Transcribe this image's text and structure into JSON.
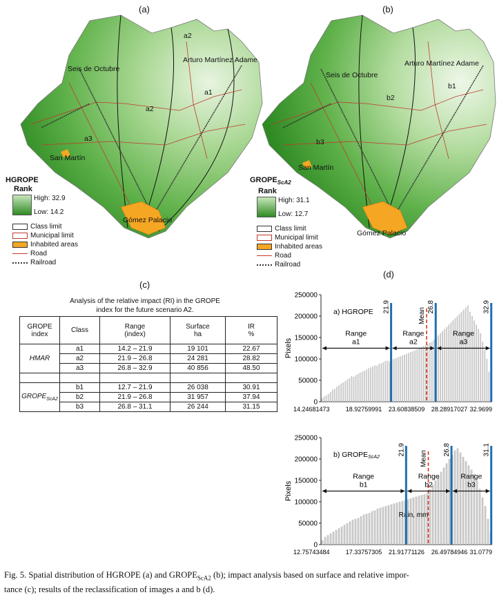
{
  "panels": {
    "a": "(a)",
    "b": "(b)",
    "c": "(c)",
    "d": "(d)"
  },
  "map_a": {
    "labels": {
      "seis": "Seis de Octubre",
      "arturo": "Arturo Martínez Adame",
      "san": "San Martín",
      "gomez": "Gómez Palacio",
      "c1": "a2",
      "c2": "a1",
      "c3": "a2",
      "c4": "a3"
    },
    "legend": {
      "title": "HGROPE",
      "rank": "Rank",
      "high": "High: 32.9",
      "low": "Low: 14.2"
    }
  },
  "map_b": {
    "labels": {
      "seis": "Seis de Octubre",
      "arturo": "Arturo Martínez Adame",
      "san": "San Martín",
      "gomez": "Gómez Palacio",
      "c1": "b1",
      "c2": "b2",
      "c3": "b3"
    },
    "legend": {
      "title": "GROPE",
      "title_sub": "ScA2",
      "rank": "Rank",
      "high": "High: 31.1",
      "low": "Low: 12.7"
    }
  },
  "legend_items": {
    "class_limit": "Class limit",
    "municipal": "Municipal limit",
    "inhabited": "Inhabited areas",
    "road": "Road",
    "railroad": "Railroad"
  },
  "colors": {
    "green_dark": "#2f8a23",
    "green_light": "#d6eccb",
    "orange": "#f5a623",
    "red": "#c0392b",
    "bar": "#c8c8c8",
    "blue": "#1f6fb2",
    "mean": "#e0301e"
  },
  "table": {
    "title_line1": "Analysis of the relative impact (RI) in the GROPE",
    "title_line2": "index for the future scenario A2.",
    "headers": [
      "GROPE index",
      "Class",
      "Range (index)",
      "Surface ha",
      "IR %"
    ],
    "header_lines": [
      [
        "GROPE",
        "index"
      ],
      [
        "Class",
        ""
      ],
      [
        "Range",
        "(index)"
      ],
      [
        "Surface",
        "ha"
      ],
      [
        "IR",
        "%"
      ]
    ],
    "group1": "HMAR",
    "group2": "GROPE",
    "group2_sub": "ScA2",
    "rows1": [
      [
        "a1",
        "14.2  –  21.9",
        "19 101",
        "22.67"
      ],
      [
        "a2",
        "21.9  –  26.8",
        "24 281",
        "28.82"
      ],
      [
        "a3",
        "26.8  –  32.9",
        "40 856",
        "48.50"
      ]
    ],
    "rows2": [
      [
        "b1",
        "12.7  –  21.9",
        "26 038",
        "30.91"
      ],
      [
        "b2",
        "21.9  –  26.8",
        "31 957",
        "37.94"
      ],
      [
        "b3",
        "26.8  –  31.1",
        "26 244",
        "31.15"
      ]
    ]
  },
  "chart_data": [
    {
      "type": "bar",
      "title": "a) HGROPE",
      "xlabel": "",
      "ylabel": "Pixels",
      "ylim": [
        0,
        250000
      ],
      "yticks": [
        "0",
        "50000",
        "100000",
        "150000",
        "200000",
        "250000"
      ],
      "xticks": [
        "14.24681473",
        "18.92759991",
        "23.60838509",
        "28.28917027",
        "32.9699"
      ],
      "xlim": [
        14.2,
        33.0
      ],
      "thresholds": [
        {
          "label": "21.9",
          "value": 21.9
        },
        {
          "label": "26.8",
          "value": 26.8
        },
        {
          "label": "32.9",
          "value": 32.9
        }
      ],
      "mean": {
        "label": "Mean",
        "value": 25.8
      },
      "ranges": [
        {
          "name": "Range",
          "sub": "a1"
        },
        {
          "name": "Range",
          "sub": "a2"
        },
        {
          "name": "Range",
          "sub": "a3"
        }
      ],
      "values": [
        8000,
        12000,
        15000,
        18000,
        22000,
        28000,
        30000,
        35000,
        38000,
        42000,
        45000,
        48000,
        52000,
        55000,
        60000,
        58000,
        62000,
        65000,
        68000,
        70000,
        72000,
        75000,
        78000,
        80000,
        82000,
        85000,
        84000,
        88000,
        90000,
        92000,
        95000,
        96000,
        94000,
        98000,
        100000,
        102000,
        104000,
        106000,
        108000,
        110000,
        112000,
        114000,
        116000,
        118000,
        120000,
        122000,
        125000,
        128000,
        130000,
        132000,
        135000,
        138000,
        140000,
        145000,
        150000,
        155000,
        160000,
        165000,
        170000,
        175000,
        180000,
        185000,
        190000,
        195000,
        200000,
        205000,
        210000,
        215000,
        220000,
        225000,
        210000,
        200000,
        190000,
        180000,
        170000,
        160000,
        140000,
        120000,
        100000,
        70000,
        40000
      ]
    },
    {
      "type": "bar",
      "title": "b) GROPE",
      "title_sub": "ScA2",
      "xlabel": "Rain, mm",
      "ylabel": "Pixels",
      "ylim": [
        0,
        250000
      ],
      "yticks": [
        "0",
        "50000",
        "100000",
        "150000",
        "200000",
        "250000"
      ],
      "xticks": [
        "12.75743484",
        "17.33757305",
        "21.91771126",
        "26.49784946",
        "31.0779"
      ],
      "xlim": [
        12.7,
        31.2
      ],
      "thresholds": [
        {
          "label": "21.9",
          "value": 21.9
        },
        {
          "label": "26.8",
          "value": 26.8
        },
        {
          "label": "31.1",
          "value": 31.1
        }
      ],
      "mean": {
        "label": "Mean",
        "value": 24.3
      },
      "ranges": [
        {
          "name": "Range",
          "sub": "b1"
        },
        {
          "name": "Range",
          "sub": "b2"
        },
        {
          "name": "Range",
          "sub": "b3"
        }
      ],
      "values": [
        10000,
        18000,
        22000,
        26000,
        30000,
        34000,
        38000,
        42000,
        46000,
        50000,
        54000,
        58000,
        60000,
        62000,
        66000,
        70000,
        72000,
        74000,
        78000,
        80000,
        84000,
        86000,
        88000,
        90000,
        92000,
        94000,
        96000,
        98000,
        100000,
        102000,
        104000,
        106000,
        108000,
        110000,
        112000,
        114000,
        116000,
        118000,
        120000,
        130000,
        140000,
        150000,
        160000,
        170000,
        180000,
        190000,
        200000,
        210000,
        220000,
        225000,
        215000,
        205000,
        195000,
        185000,
        175000,
        165000,
        150000,
        130000,
        110000,
        90000,
        60000,
        30000
      ]
    }
  ],
  "caption": {
    "t1": "Fig. 5. Spatial distribution of HGROPE (a) and GROPE",
    "sub": "ScA2",
    "t2": " (b); impact analysis based on surface and relative impor-",
    "line2": "tance (c); results of the reclassification of images a and b (d)."
  }
}
